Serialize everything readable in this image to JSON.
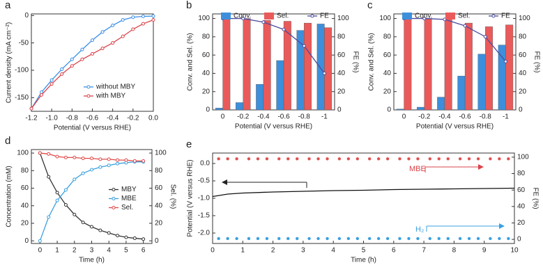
{
  "chart_data": [
    {
      "type": "line",
      "panel_label": "a",
      "xlabel": "Potential (V versus RHE)",
      "ylabel": "Current density (mA cm⁻²)",
      "xlim": [
        -1.2,
        0.0
      ],
      "xticks": [
        -1.2,
        {
          "value": -1.0,
          "label": "-1.0"
        },
        -0.8,
        -0.6,
        -0.4,
        -0.2,
        {
          "value": 0.0,
          "label": "0.0"
        }
      ],
      "ylim": [
        -175,
        3
      ],
      "yticks": [
        -150,
        -100,
        -50,
        0
      ],
      "legend": "lower right",
      "x": [
        -1.2,
        -1.1,
        -1.0,
        -0.9,
        -0.8,
        -0.7,
        -0.6,
        -0.5,
        -0.4,
        -0.3,
        -0.2,
        -0.1,
        0.0
      ],
      "series": [
        {
          "name": "without MBY",
          "color": "#3a8ee6",
          "marker": true,
          "values": [
            -170,
            -140,
            -118,
            -98,
            -80,
            -62,
            -45,
            -30,
            -18,
            -8,
            -3,
            -1.5,
            -1
          ]
        },
        {
          "name": "with MBY",
          "color": "#d9434a",
          "marker": true,
          "values": [
            -170,
            -145,
            -125,
            -107,
            -92,
            -80,
            -70,
            -60,
            -50,
            -38,
            -25,
            -15,
            -8
          ]
        }
      ]
    },
    {
      "type": "bar",
      "panel_label": "b",
      "xlabel": "Potential (V versus RHE)",
      "ylabel": "Conv. and Sel. (%)",
      "y2label": "FE (%)",
      "categories": [
        "0",
        "-0.2",
        "-0.4",
        "-0.6",
        "-0.8",
        "-1"
      ],
      "ylim": [
        0,
        105
      ],
      "yticks": [
        0,
        20,
        40,
        60,
        80,
        100
      ],
      "y2lim": [
        0,
        105
      ],
      "y2ticks": [
        0,
        20,
        40,
        60,
        80,
        100
      ],
      "legend": "upper center",
      "series": [
        {
          "name": "Conv.",
          "color": "#3d8fdc",
          "values": [
            2,
            8,
            28,
            54,
            87,
            94
          ]
        },
        {
          "name": "Sel.",
          "color": "#ea5a5a",
          "values": [
            100,
            100,
            98,
            97,
            95,
            90
          ]
        },
        {
          "name": "FE",
          "type": "line",
          "axis": "y2",
          "marker": true,
          "color": "#4b4b9c",
          "values": [
            100,
            100,
            96,
            88,
            70,
            40
          ]
        }
      ]
    },
    {
      "type": "bar",
      "panel_label": "c",
      "xlabel": "Potential (V versus RHE)",
      "ylabel": "Conv. and Sel. (%)",
      "y2label": "FE (%)",
      "categories": [
        "0",
        "-0.2",
        "-0.4",
        "-0.6",
        "-0.8",
        "-1"
      ],
      "ylim": [
        0,
        105
      ],
      "yticks": [
        0,
        20,
        40,
        60,
        80,
        100
      ],
      "y2lim": [
        0,
        105
      ],
      "y2ticks": [
        0,
        20,
        40,
        60,
        80,
        100
      ],
      "legend": "upper center",
      "series": [
        {
          "name": "Conv.",
          "color": "#3d8fdc",
          "values": [
            1,
            3,
            14,
            37,
            61,
            71
          ]
        },
        {
          "name": "Sel.",
          "color": "#ea5a5a",
          "values": [
            100,
            100,
            100,
            95,
            91,
            93
          ]
        },
        {
          "name": "FE",
          "type": "line",
          "axis": "y2",
          "marker": true,
          "color": "#4b4b9c",
          "values": [
            100,
            100,
            99,
            92,
            80,
            53
          ]
        }
      ]
    },
    {
      "type": "line",
      "panel_label": "d",
      "xlabel": "Time (h)",
      "ylabel": "Concentration (mM)",
      "y2label": "Sel. (%)",
      "xlim": [
        -0.5,
        6.5
      ],
      "xticks": [
        0,
        1,
        2,
        3,
        4,
        5,
        6
      ],
      "ylim": [
        -3,
        104
      ],
      "yticks": [
        0,
        20,
        40,
        60,
        80,
        100
      ],
      "y2lim": [
        -3,
        104
      ],
      "y2ticks": [
        0,
        20,
        40,
        60,
        80,
        100
      ],
      "legend": "center right",
      "x": [
        0,
        0.5,
        1,
        1.5,
        2,
        2.5,
        3,
        3.5,
        4,
        4.5,
        5,
        5.5,
        6
      ],
      "series": [
        {
          "name": "MBY",
          "color": "#333333",
          "marker": true,
          "values": [
            100,
            73,
            55,
            41,
            30,
            21,
            16,
            12,
            9,
            6,
            4,
            3,
            2
          ]
        },
        {
          "name": "MBE",
          "color": "#3aa0e0",
          "marker": true,
          "values": [
            0,
            27,
            46,
            58,
            70,
            77,
            81,
            84,
            86,
            88,
            89,
            90,
            90
          ]
        },
        {
          "name": "Sel.",
          "color": "#e04848",
          "marker": true,
          "axis": "y2",
          "values": [
            100,
            99,
            96,
            95,
            95,
            94,
            94,
            93,
            93,
            92,
            92,
            91,
            91
          ]
        }
      ]
    },
    {
      "type": "line",
      "panel_label": "e",
      "xlabel": "Time (h)",
      "ylabel": "Potential (V versus RHE)",
      "y2label": "FE (%)",
      "xlim": [
        0,
        10
      ],
      "xticks": [
        0,
        1,
        2,
        3,
        4,
        5,
        6,
        7,
        8,
        9,
        10
      ],
      "ylim": [
        -2.3,
        0.3
      ],
      "yticks": [
        {
          "value": 0.0,
          "label": "0.0"
        },
        -0.5,
        {
          "value": -1.0,
          "label": "-1.0"
        },
        -1.5,
        {
          "value": -2.0,
          "label": "-2.0"
        }
      ],
      "y2lim": [
        -5,
        105
      ],
      "y2ticks": [
        0,
        20,
        40,
        60,
        80,
        100
      ],
      "series": [
        {
          "color": "#111111",
          "x": [
            0,
            0.5,
            1,
            2,
            3,
            4,
            5,
            6,
            7,
            8,
            9,
            10
          ],
          "values": [
            -0.95,
            -0.88,
            -0.85,
            -0.82,
            -0.8,
            -0.78,
            -0.77,
            -0.75,
            -0.74,
            -0.73,
            -0.72,
            -0.71
          ]
        },
        {
          "name": "MBE",
          "type": "scatter",
          "axis": "y2",
          "color": "#e05050",
          "x": [
            0.2,
            0.5,
            0.8,
            1.2,
            1.5,
            1.8,
            2.2,
            2.5,
            2.8,
            3.2,
            3.5,
            3.8,
            4.2,
            4.5,
            4.8,
            5.2,
            5.5,
            5.8,
            6.2,
            6.5,
            6.8,
            7.2,
            7.5,
            7.8,
            8.2,
            8.5,
            8.8,
            9.2,
            9.5,
            9.8
          ],
          "values": [
            98,
            98,
            98,
            98,
            98,
            98,
            98,
            98,
            98,
            98,
            98,
            98,
            98,
            98,
            98,
            98,
            98,
            98,
            98,
            98,
            98,
            98,
            98,
            98,
            98,
            98,
            98,
            98,
            98,
            98
          ]
        },
        {
          "name": "H₂",
          "type": "scatter",
          "axis": "y2",
          "color": "#3aa0e0",
          "x": [
            0.2,
            0.5,
            0.8,
            1.2,
            1.5,
            1.8,
            2.2,
            2.5,
            2.8,
            3.2,
            3.5,
            3.8,
            4.2,
            4.5,
            4.8,
            5.2,
            5.5,
            5.8,
            6.2,
            6.5,
            6.8,
            7.2,
            7.5,
            7.8,
            8.2,
            8.5,
            8.8,
            9.2,
            9.5,
            9.8
          ],
          "values": [
            1,
            1,
            1,
            1,
            1,
            1,
            1,
            1,
            1,
            1,
            1,
            1,
            1,
            1,
            1,
            1,
            1,
            1,
            1,
            1,
            1,
            1,
            1,
            1,
            1,
            1,
            1,
            1,
            1,
            1
          ]
        }
      ]
    }
  ]
}
